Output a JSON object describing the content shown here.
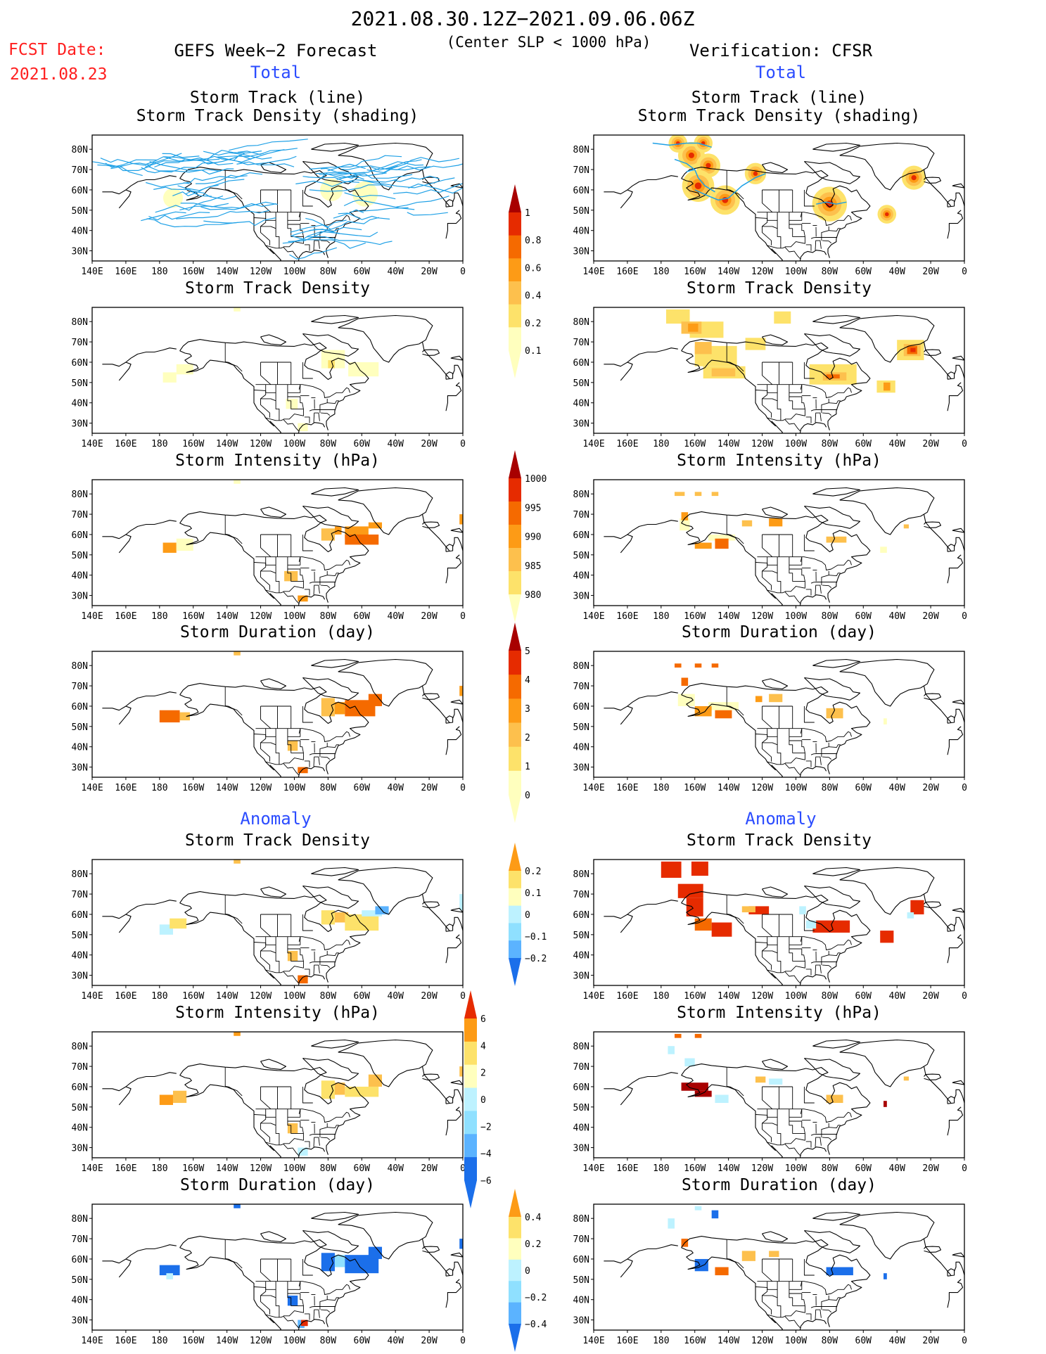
{
  "header": {
    "period": "2021.08.30.12Z−2021.09.06.06Z",
    "criterion": "(Center SLP < 1000 hPa)",
    "fcst_label": "FCST Date:",
    "fcst_date": "2021.08.23",
    "left_title": "GEFS Week−2 Forecast",
    "right_title": "Verification: CFSR"
  },
  "sections": {
    "total": "Total",
    "anomaly": "Anomaly"
  },
  "panel_titles": {
    "track1": "Storm Track (line)",
    "track2": "Storm Track Density (shading)",
    "density": "Storm Track Density",
    "intensity": "Storm Intensity (hPa)",
    "duration": "Storm Duration (day)"
  },
  "axes": {
    "lon_ticks": [
      "140E",
      "160E",
      "180",
      "160W",
      "140W",
      "120W",
      "100W",
      "80W",
      "60W",
      "40W",
      "20W",
      "0"
    ],
    "lat_ticks": [
      "80N",
      "70N",
      "60N",
      "50N",
      "40N",
      "30N"
    ]
  },
  "colorbars": {
    "density_total": [
      "0.1",
      "0.2",
      "0.4",
      "0.6",
      "0.8",
      "1"
    ],
    "intensity_total": [
      "1000",
      "995",
      "990",
      "985",
      "980"
    ],
    "duration_total": [
      "0",
      "1",
      "2",
      "3",
      "4",
      "5"
    ],
    "density_anom": [
      "−0.2",
      "−0.1",
      "0",
      "0.1",
      "0.2"
    ],
    "intensity_anom": [
      "−6",
      "−4",
      "−2",
      "0",
      "2",
      "4",
      "6"
    ],
    "duration_anom": [
      "−0.4",
      "−0.2",
      "0",
      "0.2",
      "0.4"
    ]
  },
  "colors": {
    "pale_yellow": "#ffffbe",
    "yellow": "#fde26a",
    "light_orange": "#fdc04d",
    "orange": "#fd9b16",
    "dark_orange": "#f56a00",
    "red": "#e62b00",
    "dark_red": "#a80000",
    "light_cyan": "#bdf2ff",
    "cyan": "#8fe0ff",
    "light_blue": "#5bb3ff",
    "blue": "#1b6fea",
    "track_line": "#1ea0e6"
  }
}
